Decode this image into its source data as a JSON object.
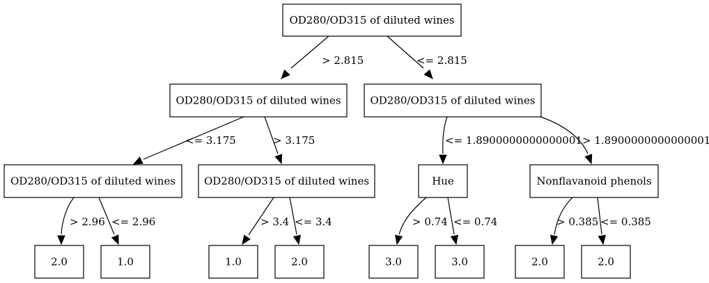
{
  "tree": {
    "nodes": [
      {
        "id": "n0",
        "label": "OD280/OD315 of diluted wines"
      },
      {
        "id": "n1",
        "label": "OD280/OD315 of diluted wines"
      },
      {
        "id": "n2",
        "label": "OD280/OD315 of diluted wines"
      },
      {
        "id": "n3",
        "label": "OD280/OD315 of diluted wines"
      },
      {
        "id": "n4",
        "label": "OD280/OD315 of diluted wines"
      },
      {
        "id": "n5",
        "label": "Hue"
      },
      {
        "id": "n6",
        "label": "Nonflavanoid phenols"
      },
      {
        "id": "n7",
        "label": "2.0"
      },
      {
        "id": "n8",
        "label": "1.0"
      },
      {
        "id": "n9",
        "label": "1.0"
      },
      {
        "id": "n10",
        "label": "2.0"
      },
      {
        "id": "n11",
        "label": "3.0"
      },
      {
        "id": "n12",
        "label": "3.0"
      },
      {
        "id": "n13",
        "label": "2.0"
      },
      {
        "id": "n14",
        "label": "2.0"
      }
    ],
    "edges": [
      {
        "from": "n0",
        "to": "n1",
        "label": "> 2.815"
      },
      {
        "from": "n0",
        "to": "n2",
        "label": "<= 2.815"
      },
      {
        "from": "n1",
        "to": "n3",
        "label": "<= 3.175"
      },
      {
        "from": "n1",
        "to": "n4",
        "label": "> 3.175"
      },
      {
        "from": "n2",
        "to": "n5",
        "label": "<= 1.8900000000000001"
      },
      {
        "from": "n2",
        "to": "n6",
        "label": "> 1.8900000000000001"
      },
      {
        "from": "n3",
        "to": "n7",
        "label": "> 2.96"
      },
      {
        "from": "n3",
        "to": "n8",
        "label": "<= 2.96"
      },
      {
        "from": "n4",
        "to": "n9",
        "label": "> 3.4"
      },
      {
        "from": "n4",
        "to": "n10",
        "label": "<= 3.4"
      },
      {
        "from": "n5",
        "to": "n11",
        "label": "> 0.74"
      },
      {
        "from": "n5",
        "to": "n12",
        "label": "<= 0.74"
      },
      {
        "from": "n6",
        "to": "n13",
        "label": "> 0.385"
      },
      {
        "from": "n6",
        "to": "n14",
        "label": "<= 0.385"
      }
    ]
  }
}
